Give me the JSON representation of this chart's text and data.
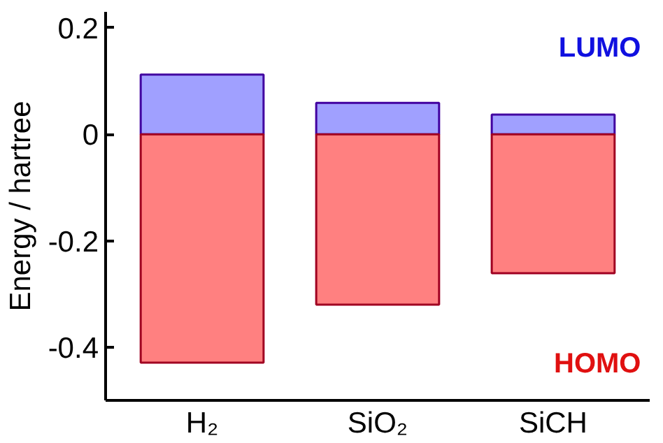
{
  "chart_data": {
    "type": "bar",
    "ylabel": "Energy / hartree",
    "categories": [
      "H₂",
      "SiO₂",
      "SiCH"
    ],
    "series": [
      {
        "name": "LUMO",
        "color": "#a0a0ff",
        "values": [
          0.112,
          0.059,
          0.037
        ]
      },
      {
        "name": "HOMO",
        "color": "#ff8080",
        "values": [
          -0.429,
          -0.32,
          -0.261
        ]
      }
    ],
    "ylim": [
      -0.5,
      0.23
    ],
    "yticks": [
      {
        "value": 0.2,
        "label": "0.2"
      },
      {
        "value": 0,
        "label": "0"
      },
      {
        "value": -0.2,
        "label": "-0.2"
      },
      {
        "value": -0.4,
        "label": "-0.4"
      }
    ],
    "grid": false,
    "stacked": true,
    "legend": false
  }
}
